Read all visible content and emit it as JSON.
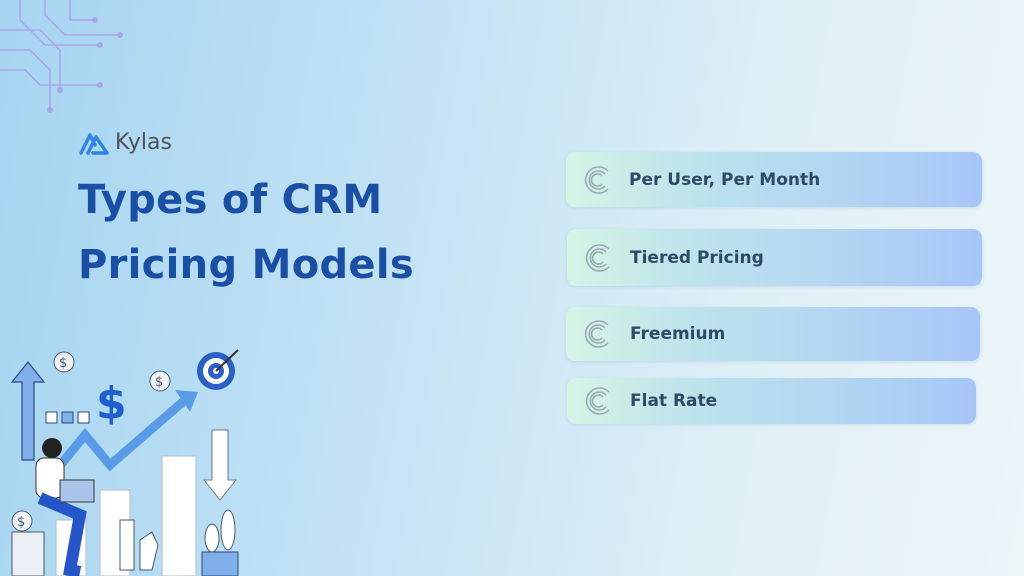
{
  "brand": {
    "name": "Kylas",
    "logo_color": "#2f86e8"
  },
  "title": {
    "line1": "Types of CRM",
    "line2": "Pricing Models",
    "color": "#1b4fa5"
  },
  "models": [
    {
      "label": "Per User, Per Month",
      "icon": "swirl-c-icon"
    },
    {
      "label": "Tiered Pricing",
      "icon": "swirl-c-icon"
    },
    {
      "label": "Freemium",
      "icon": "swirl-c-icon"
    },
    {
      "label": "Flat Rate",
      "icon": "swirl-c-icon"
    }
  ],
  "illustration": {
    "dollar_symbol": "$",
    "coin_symbol": "$"
  }
}
